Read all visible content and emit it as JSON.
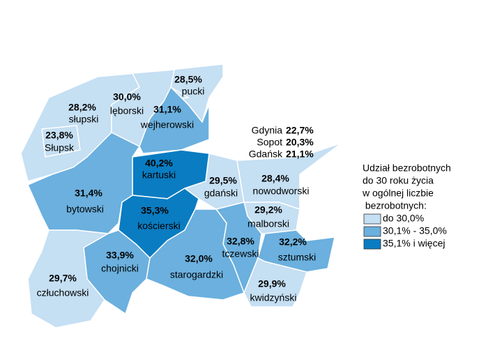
{
  "map": {
    "regions": [
      {
        "name": "pucki",
        "value": "28,5%",
        "class": 0
      },
      {
        "name": "słupski",
        "value": "28,2%",
        "class": 0
      },
      {
        "name": "lęborski",
        "value": "30,0%",
        "class": 0
      },
      {
        "name": "wejherowski",
        "value": "31,1%",
        "class": 1
      },
      {
        "name": "Słupsk",
        "value": "23,8%",
        "class": 0
      },
      {
        "name": "kartuski",
        "value": "40,2%",
        "class": 2
      },
      {
        "name": "gdański",
        "value": "29,5%",
        "class": 0
      },
      {
        "name": "nowodworski",
        "value": "28,4%",
        "class": 0
      },
      {
        "name": "bytowski",
        "value": "31,4%",
        "class": 1
      },
      {
        "name": "kościerski",
        "value": "35,3%",
        "class": 2
      },
      {
        "name": "malborski",
        "value": "29,2%",
        "class": 0
      },
      {
        "name": "tczewski",
        "value": "32,8%",
        "class": 1
      },
      {
        "name": "sztumski",
        "value": "32,2%",
        "class": 1
      },
      {
        "name": "chojnicki",
        "value": "33,9%",
        "class": 1
      },
      {
        "name": "starogardzki",
        "value": "32,0%",
        "class": 1
      },
      {
        "name": "człuchowski",
        "value": "29,7%",
        "class": 0
      },
      {
        "name": "kwidzyński",
        "value": "29,9%",
        "class": 0
      }
    ],
    "cities": [
      {
        "name": "Gdynia",
        "value": "22,7%"
      },
      {
        "name": "Sopot",
        "value": "20,3%"
      },
      {
        "name": "Gdańsk",
        "value": "21,1%"
      }
    ],
    "legend": {
      "title": [
        "Udział bezrobotnych",
        "do 30 roku życia",
        "w ogólnej liczbie",
        " bezrobotnych:"
      ],
      "items": [
        {
          "label": "do 30,0%",
          "color": "#c5dff3"
        },
        {
          "label": "30,1% - 35,0%",
          "color": "#6bb0de"
        },
        {
          "label": "35,1% i więcej",
          "color": "#0a7cc1"
        }
      ]
    }
  }
}
